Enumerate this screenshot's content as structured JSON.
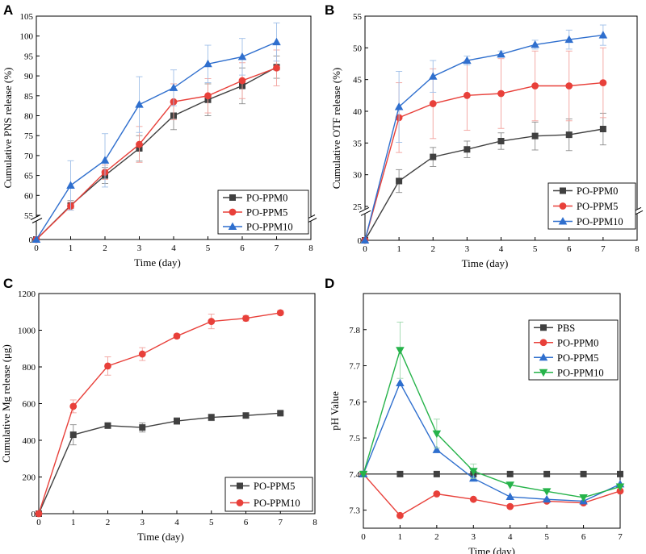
{
  "colors": {
    "black_series": "#404040",
    "red_series": "#e8403a",
    "blue_series": "#2f6fce",
    "green_series": "#26b34a",
    "error_black": "#8c8c8c",
    "error_red": "#f2a19c",
    "error_blue": "#9fbfe8",
    "error_green": "#9fd7ad"
  },
  "chart_data": [
    {
      "panel": "A",
      "type": "line",
      "xlabel": "Time (day)",
      "ylabel": "Cumulative PNS release (%)",
      "x": [
        0,
        1,
        2,
        3,
        4,
        5,
        6,
        7
      ],
      "xlim": [
        0,
        8
      ],
      "xticks": [
        "0",
        "1",
        "2",
        "3",
        "4",
        "5",
        "6",
        "7",
        "8"
      ],
      "axis_break": {
        "lower": [
          0,
          0
        ],
        "upper": [
          55,
          105
        ],
        "upper_ticks": [
          "55",
          "60",
          "65",
          "70",
          "75",
          "80",
          "85",
          "90",
          "95",
          "100",
          "105"
        ],
        "lower_ticks": [
          "0"
        ]
      },
      "legend_position": "bottom-right",
      "series": [
        {
          "name": "PO-PPM0",
          "marker": "square",
          "color": "black_series",
          "values": [
            0,
            57.5,
            65,
            71.8,
            80,
            84,
            87.5,
            92.2
          ],
          "errors": [
            0,
            1.2,
            2,
            3.2,
            3.5,
            4,
            4.5,
            2.8
          ]
        },
        {
          "name": "PO-PPM5",
          "marker": "circle",
          "color": "red_series",
          "values": [
            0,
            57.3,
            65.8,
            72.8,
            83.5,
            85,
            88.8,
            92
          ],
          "errors": [
            0,
            1,
            1.8,
            4.5,
            4.5,
            4.3,
            4.5,
            4.5
          ]
        },
        {
          "name": "PO-PPM10",
          "marker": "triangle",
          "color": "blue_series",
          "values": [
            0,
            62.5,
            68.8,
            82.8,
            87,
            93,
            94.8,
            98.5
          ],
          "errors": [
            0,
            6.2,
            6.7,
            7,
            4.5,
            4.7,
            4.6,
            4.8
          ]
        }
      ]
    },
    {
      "panel": "B",
      "type": "line",
      "xlabel": "Time (day)",
      "ylabel": "Cumulative OTF release (%)",
      "x": [
        0,
        1,
        2,
        3,
        4,
        5,
        6,
        7
      ],
      "xlim": [
        0,
        8
      ],
      "xticks": [
        "0",
        "1",
        "2",
        "3",
        "4",
        "5",
        "6",
        "7",
        "8"
      ],
      "axis_break": {
        "lower": [
          0,
          0
        ],
        "upper": [
          25,
          55
        ],
        "upper_ticks": [
          "25",
          "30",
          "35",
          "40",
          "45",
          "50",
          "55"
        ],
        "lower_ticks": [
          "0"
        ]
      },
      "legend_position": "bottom-right",
      "series": [
        {
          "name": "PO-PPM0",
          "marker": "square",
          "color": "black_series",
          "values": [
            0,
            29,
            32.8,
            34,
            35.3,
            36.1,
            36.3,
            37.2
          ],
          "errors": [
            0,
            1.8,
            1.5,
            1.3,
            1.3,
            2.2,
            2.5,
            2.5
          ]
        },
        {
          "name": "PO-PPM5",
          "marker": "circle",
          "color": "red_series",
          "values": [
            0,
            39,
            41.2,
            42.5,
            42.8,
            44,
            44,
            44.5
          ],
          "errors": [
            0,
            5.5,
            5.5,
            5.5,
            5.5,
            5.5,
            5.5,
            5.5
          ]
        },
        {
          "name": "PO-PPM10",
          "marker": "triangle",
          "color": "blue_series",
          "values": [
            0,
            40.7,
            45.5,
            48,
            49,
            50.5,
            51.3,
            52
          ],
          "errors": [
            0,
            5.6,
            2.5,
            0.7,
            0.5,
            0.7,
            1.5,
            1.6
          ]
        }
      ]
    },
    {
      "panel": "C",
      "type": "line",
      "xlabel": "Time (day)",
      "ylabel": "Cumulative Mg release (μg)",
      "x": [
        0,
        1,
        2,
        3,
        4,
        5,
        6,
        7
      ],
      "xlim": [
        0,
        8
      ],
      "ylim": [
        0,
        1200
      ],
      "xticks": [
        "0",
        "1",
        "2",
        "3",
        "4",
        "5",
        "6",
        "7",
        "8"
      ],
      "yticks": [
        "0",
        "200",
        "400",
        "600",
        "800",
        "1000",
        "1200"
      ],
      "legend_position": "bottom-right",
      "series": [
        {
          "name": "PO-PPM5",
          "marker": "square",
          "color": "black_series",
          "values": [
            0,
            430,
            480,
            470,
            505,
            525,
            535,
            548
          ],
          "errors": [
            0,
            55,
            15,
            25,
            18,
            18,
            10,
            8
          ]
        },
        {
          "name": "PO-PPM10",
          "marker": "circle",
          "color": "red_series",
          "values": [
            0,
            585,
            805,
            870,
            968,
            1048,
            1065,
            1095
          ],
          "errors": [
            0,
            35,
            50,
            35,
            12,
            40,
            15,
            12
          ]
        }
      ]
    },
    {
      "panel": "D",
      "type": "line",
      "xlabel": "Time (day)",
      "ylabel": "pH Value",
      "x": [
        0,
        1,
        2,
        3,
        4,
        5,
        6,
        7
      ],
      "xlim": [
        0,
        7
      ],
      "ylim": [
        7.25,
        7.9
      ],
      "xticks": [
        "0",
        "1",
        "2",
        "3",
        "4",
        "5",
        "6",
        "7"
      ],
      "yticks": [
        "7.3",
        "7.4",
        "7.5",
        "7.6",
        "7.7",
        "7.8"
      ],
      "legend_position": "top-right",
      "series": [
        {
          "name": "PBS",
          "marker": "square",
          "color": "black_series",
          "values": [
            7.4,
            7.4,
            7.4,
            7.4,
            7.4,
            7.4,
            7.4,
            7.4
          ],
          "errors": [
            0,
            0,
            0,
            0,
            0,
            0,
            0,
            0
          ]
        },
        {
          "name": "PO-PPM0",
          "marker": "circle",
          "color": "red_series",
          "values": [
            7.4,
            7.285,
            7.345,
            7.33,
            7.31,
            7.325,
            7.32,
            7.353
          ],
          "errors": [
            0,
            0,
            0,
            0,
            0,
            0,
            0,
            0
          ]
        },
        {
          "name": "PO-PPM5",
          "marker": "triangle",
          "color": "blue_series",
          "values": [
            7.4,
            7.652,
            7.467,
            7.388,
            7.337,
            7.33,
            7.325,
            7.372
          ],
          "errors": [
            0,
            0,
            0,
            0,
            0,
            0,
            0,
            0
          ]
        },
        {
          "name": "PO-PPM10",
          "marker": "triangle-down",
          "color": "green_series",
          "values": [
            7.4,
            7.743,
            7.512,
            7.408,
            7.37,
            7.352,
            7.335,
            7.365
          ],
          "errors": [
            0,
            0.078,
            0.04,
            0.02,
            0,
            0,
            0,
            0
          ]
        }
      ]
    }
  ]
}
